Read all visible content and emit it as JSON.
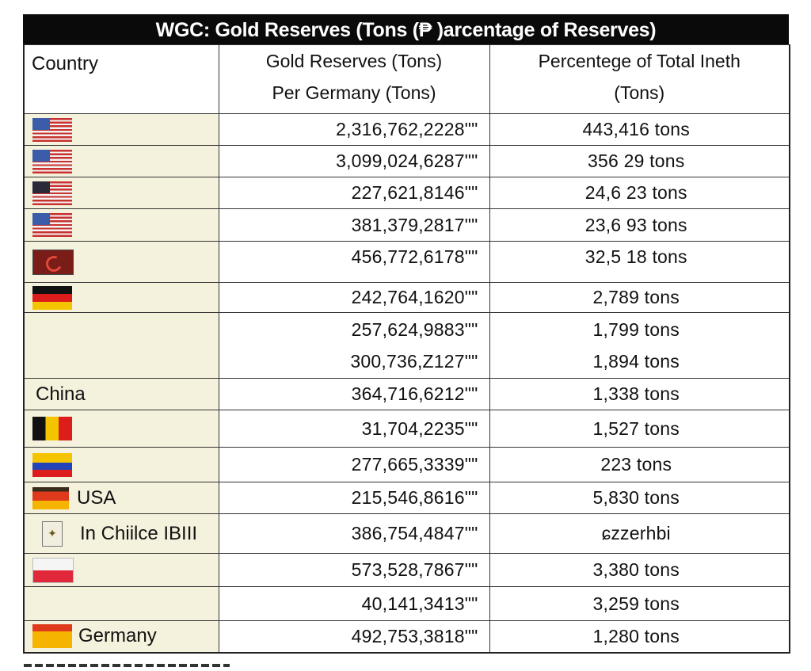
{
  "title": "WGC: Gold Reserves (Tons  (₱  )arcentage of Reserves)",
  "headers": {
    "country": "Country",
    "reserves_line1": "Gold Reserves (Tons)",
    "reserves_line2": "Per Germany (Tons)",
    "pct_line1": "Percentege of Total Ineth",
    "pct_line2": "(Tons)"
  },
  "rows": [
    {
      "flag": "us-flag",
      "label": "",
      "reserve": "2,316,762,2228\"\"",
      "pct": "443,416 tons"
    },
    {
      "flag": "us-flag",
      "label": "",
      "reserve": "3,099,024,6287\"\"",
      "pct": "356 29 tons"
    },
    {
      "flag": "us-flag-dark",
      "label": "",
      "reserve": "227,621,8146\"\"",
      "pct": "24,6 23 tons"
    },
    {
      "flag": "us-flag",
      "label": "",
      "reserve": "381,379,2817\"\"",
      "pct": "23,6 93 tons"
    },
    {
      "flag": "turkey-flag",
      "label": "",
      "reserve": "456,772,6178\"\"",
      "pct": "32,5 18 tons"
    },
    {
      "flag": "germany-flag",
      "label": "",
      "reserve": "242,764,1620\"\"",
      "pct": "2,789 tons"
    },
    {
      "flag": "",
      "label": "",
      "reserve": "257,624,9883\"\"",
      "pct": "1,799 tons",
      "reserve2": "300,736,Z127\"\"",
      "pct2": "1,894 tons"
    },
    {
      "flag": "",
      "label": "China",
      "reserve": "364,716,6212\"\"",
      "pct": "1,338 tons"
    },
    {
      "flag": "belgium-flag",
      "label": "",
      "reserve": "31,704,2235\"\"",
      "pct": "1,527 tons"
    },
    {
      "flag": "colombia-flag",
      "label": "",
      "reserve": "277,665,3339\"\"",
      "pct": "223 tons"
    },
    {
      "flag": "germany-flag-variant",
      "label": "USA",
      "reserve": "215,546,8616\"\"",
      "pct": "5,830 tons"
    },
    {
      "flag": "seal-emblem",
      "label": "In Chiilce IBIII",
      "reserve": "386,754,4847\"\"",
      "pct": "ɕzzerhbi"
    },
    {
      "flag": "poland-flag",
      "label": "",
      "reserve": "573,528,7867\"\"",
      "pct": "3,380 tons"
    },
    {
      "flag": "",
      "label": "",
      "reserve": "40,141,3413\"\"",
      "pct": "3,259 tons"
    },
    {
      "flag": "spain-flag",
      "label": "Germany",
      "reserve": "492,753,3818\"\"",
      "pct": "1,280 tons"
    }
  ]
}
